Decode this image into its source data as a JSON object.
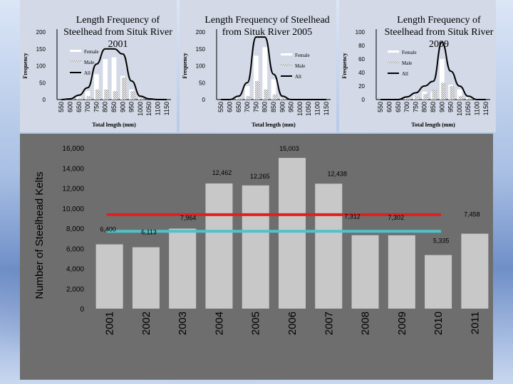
{
  "charts_top": [
    {
      "title": "Length Frequency of Steelhead from Situk River 2001",
      "ylabel": "Frequency",
      "xlabel": "Total length (mm)",
      "yticks": [
        0,
        50,
        100,
        150,
        200
      ],
      "ylim": [
        0,
        200
      ],
      "legend": [
        "Female",
        "Male",
        "All"
      ]
    },
    {
      "title": "Length Frequency of Steelhead from Situk River 2005",
      "ylabel": "Frequency",
      "xlabel": "Total length (mm)",
      "yticks": [
        0,
        50,
        100,
        150,
        200
      ],
      "ylim": [
        0,
        200
      ],
      "legend": [
        "Female",
        "Male",
        "All"
      ]
    },
    {
      "title": "Length Frequency of Steelhead from Situk River 2009",
      "ylabel": "Frequency",
      "xlabel": "Total length (mm)",
      "yticks": [
        0,
        20,
        40,
        60,
        80,
        100
      ],
      "ylim": [
        0,
        100
      ],
      "legend": [
        "Female",
        "Male",
        "All"
      ]
    }
  ],
  "chart_data": [
    {
      "type": "bar",
      "title": "Length Frequency of Steelhead from Situk River 2001",
      "xlabel": "Total length (mm)",
      "ylabel": "Frequency",
      "categories": [
        "550",
        "600",
        "650",
        "700",
        "750",
        "800",
        "850",
        "900",
        "950",
        "1000",
        "1050",
        "1100",
        "1150"
      ],
      "ylim": [
        0,
        200
      ],
      "series": [
        {
          "name": "Female",
          "values": [
            0,
            1,
            8,
            25,
            75,
            120,
            125,
            70,
            30,
            5,
            1,
            0,
            0
          ]
        },
        {
          "name": "Male",
          "values": [
            0,
            1,
            5,
            10,
            30,
            30,
            25,
            65,
            25,
            5,
            1,
            0,
            0
          ]
        },
        {
          "name": "All",
          "values": [
            0,
            2,
            13,
            35,
            105,
            150,
            150,
            135,
            55,
            10,
            2,
            0,
            0
          ]
        }
      ]
    },
    {
      "type": "bar",
      "title": "Length Frequency of Steelhead from Situk River 2005",
      "xlabel": "Total length (mm)",
      "ylabel": "Frequency",
      "categories": [
        "550",
        "600",
        "650",
        "700",
        "750",
        "800",
        "850",
        "900",
        "950",
        "1000",
        "1050",
        "1100",
        "1150"
      ],
      "ylim": [
        0,
        200
      ],
      "series": [
        {
          "name": "Female",
          "values": [
            0,
            0,
            5,
            40,
            130,
            155,
            60,
            5,
            0,
            0,
            0,
            0,
            0
          ]
        },
        {
          "name": "Male",
          "values": [
            0,
            0,
            5,
            10,
            55,
            30,
            15,
            5,
            0,
            0,
            0,
            0,
            0
          ]
        },
        {
          "name": "All",
          "values": [
            0,
            0,
            10,
            50,
            185,
            185,
            75,
            10,
            0,
            0,
            0,
            0,
            0
          ]
        }
      ]
    },
    {
      "type": "bar",
      "title": "Length Frequency of Steelhead from Situk River 2009",
      "xlabel": "Total length (mm)",
      "ylabel": "Frequency",
      "categories": [
        "550",
        "600",
        "650",
        "700",
        "750",
        "800",
        "850",
        "900",
        "950",
        "1000",
        "1050",
        "1100",
        "1150"
      ],
      "ylim": [
        0,
        100
      ],
      "series": [
        {
          "name": "Female",
          "values": [
            0,
            0,
            0,
            2,
            5,
            12,
            12,
            60,
            22,
            15,
            3,
            0,
            0
          ]
        },
        {
          "name": "Male",
          "values": [
            0,
            0,
            0,
            2,
            5,
            8,
            15,
            25,
            20,
            5,
            2,
            0,
            0
          ]
        },
        {
          "name": "All",
          "values": [
            0,
            0,
            0,
            4,
            10,
            20,
            27,
            85,
            42,
            20,
            5,
            0,
            0
          ]
        }
      ]
    },
    {
      "type": "bar",
      "title": "",
      "xlabel": "",
      "ylabel": "Number of Steelhead Kelts",
      "categories": [
        "2001",
        "2002",
        "2003",
        "2004",
        "2005",
        "2006",
        "2007",
        "2008",
        "2009",
        "2010",
        "2011"
      ],
      "values": [
        6400,
        6113,
        7964,
        12462,
        12265,
        15003,
        12438,
        7312,
        7302,
        5335,
        7458
      ],
      "value_labels": [
        "6,400",
        "6,113",
        "7,964",
        "12,462",
        "12,265",
        "15,003",
        "12,438",
        "7,312",
        "7,302",
        "5,335",
        "7,458"
      ],
      "yticks": [
        "0",
        "2,000",
        "4,000",
        "6,000",
        "8,000",
        "10,000",
        "12,000",
        "14,000",
        "16,000"
      ],
      "ylim": [
        0,
        16000
      ],
      "reference_lines": [
        {
          "color": "#e02020",
          "value": 9350
        },
        {
          "color": "#4fc3c8",
          "value": 7700
        }
      ],
      "colors": {
        "bar": "#c8c8c8",
        "panel": "#6e6e6e"
      }
    }
  ]
}
